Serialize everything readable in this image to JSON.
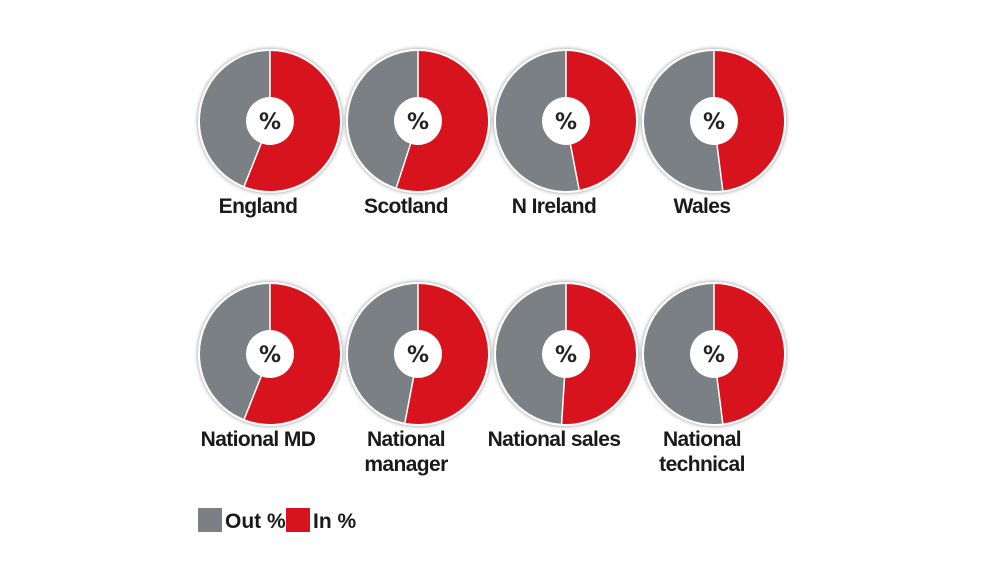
{
  "chart_data": {
    "type": "pie",
    "center_label": "%",
    "series_colors": {
      "out": "#7b8085",
      "in": "#d7141e"
    },
    "legend": [
      {
        "key": "out",
        "label": "Out %"
      },
      {
        "key": "in",
        "label": "In %"
      }
    ],
    "pies": [
      {
        "label": [
          "England"
        ],
        "out": 44,
        "in": 56
      },
      {
        "label": [
          "Scotland"
        ],
        "out": 45,
        "in": 55
      },
      {
        "label": [
          "N Ireland"
        ],
        "out": 53,
        "in": 47
      },
      {
        "label": [
          "Wales"
        ],
        "out": 52,
        "in": 48
      },
      {
        "label": [
          "National MD"
        ],
        "out": 44,
        "in": 56
      },
      {
        "label": [
          "National",
          "manager"
        ],
        "out": 47,
        "in": 53
      },
      {
        "label": [
          "National sales"
        ],
        "out": 49,
        "in": 51
      },
      {
        "label": [
          "National",
          "technical"
        ],
        "out": 52,
        "in": 48
      }
    ]
  }
}
